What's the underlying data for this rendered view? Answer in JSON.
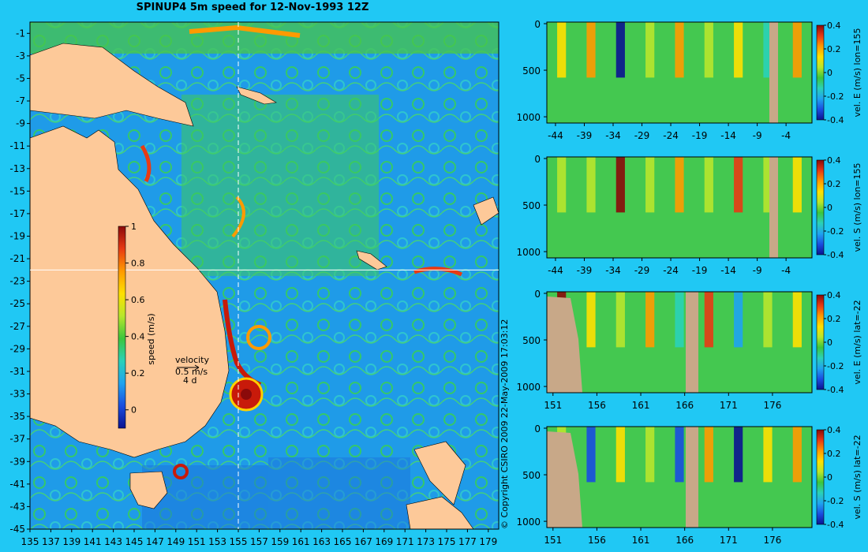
{
  "title": "SPINUP4 5m speed for 12-Nov-1993 12Z",
  "copyright": "© Copyright CSIRO 2009   22-May-2009 17:03:12",
  "colors": {
    "background": "#20c8f4",
    "ocean_low": "#1f8fe6",
    "ocean_mid": "#2fbf6a",
    "ocean_high": "#e83a14",
    "land": "#fdc999",
    "section_land": "#c8a888"
  },
  "colormap": [
    "#0b1390",
    "#1a4de0",
    "#1fa3f0",
    "#2ad1b8",
    "#3cc63c",
    "#b8e62c",
    "#ffe000",
    "#ff9a00",
    "#e83a14",
    "#8b0a0a"
  ],
  "chart_data": [
    {
      "type": "heatmap",
      "name": "map",
      "title": "SPINUP4 5m speed for 12-Nov-1993 12Z",
      "x_ticks": [
        "135",
        "137",
        "139",
        "141",
        "143",
        "145",
        "147",
        "149",
        "151",
        "153",
        "155",
        "157",
        "159",
        "161",
        "163",
        "165",
        "167",
        "169",
        "171",
        "173",
        "175",
        "177",
        "179"
      ],
      "y_ticks": [
        "-1",
        "-3",
        "-5",
        "-7",
        "-9",
        "-11",
        "-13",
        "-15",
        "-17",
        "-19",
        "-21",
        "-23",
        "-25",
        "-27",
        "-29",
        "-31",
        "-33",
        "-35",
        "-37",
        "-39",
        "-41",
        "-43",
        "-45"
      ],
      "xlim": [
        135,
        180
      ],
      "ylim": [
        -45,
        0
      ],
      "crosshair": {
        "lon": 155,
        "lat": -22
      },
      "colorbar": {
        "label": "speed (m/s)",
        "ticks": [
          "1",
          "0.8",
          "0.6",
          "0.4",
          "0.2",
          "0"
        ],
        "range": [
          -0.1,
          1
        ]
      },
      "velocity_key": {
        "label": "velocity",
        "scale": "0.5 m/s",
        "duration": "4 d"
      }
    },
    {
      "type": "heatmap",
      "name": "section-1",
      "x_ticks": [
        "-44",
        "-39",
        "-34",
        "-29",
        "-24",
        "-19",
        "-14",
        "-9",
        "-4"
      ],
      "y_ticks": [
        "0",
        "500",
        "1000"
      ],
      "colorbar": {
        "label": "vel. E (m/s) lon=155",
        "ticks": [
          "0.4",
          "0.2",
          "0",
          "-0.2",
          "-0.4"
        ],
        "range": [
          -0.4,
          0.4
        ]
      }
    },
    {
      "type": "heatmap",
      "name": "section-2",
      "x_ticks": [
        "-44",
        "-39",
        "-34",
        "-29",
        "-24",
        "-19",
        "-14",
        "-9",
        "-4"
      ],
      "y_ticks": [
        "0",
        "500",
        "1000"
      ],
      "colorbar": {
        "label": "vel. S (m/s) lon=155",
        "ticks": [
          "0.4",
          "0.2",
          "0",
          "-0.2",
          "-0.4"
        ],
        "range": [
          -0.4,
          0.4
        ]
      }
    },
    {
      "type": "heatmap",
      "name": "section-3",
      "x_ticks": [
        "151",
        "156",
        "161",
        "166",
        "171",
        "176"
      ],
      "y_ticks": [
        "0",
        "500",
        "1000"
      ],
      "colorbar": {
        "label": "vel. E (m/s) lat=-22",
        "ticks": [
          "0.4",
          "0.2",
          "0",
          "-0.2",
          "-0.4"
        ],
        "range": [
          -0.4,
          0.4
        ]
      }
    },
    {
      "type": "heatmap",
      "name": "section-4",
      "x_ticks": [
        "151",
        "156",
        "161",
        "166",
        "171",
        "176"
      ],
      "y_ticks": [
        "0",
        "500",
        "1000"
      ],
      "colorbar": {
        "label": "vel. S (m/s) lat=-22",
        "ticks": [
          "0.4",
          "0.2",
          "0",
          "-0.2",
          "-0.4"
        ],
        "range": [
          -0.4,
          0.4
        ]
      }
    }
  ]
}
